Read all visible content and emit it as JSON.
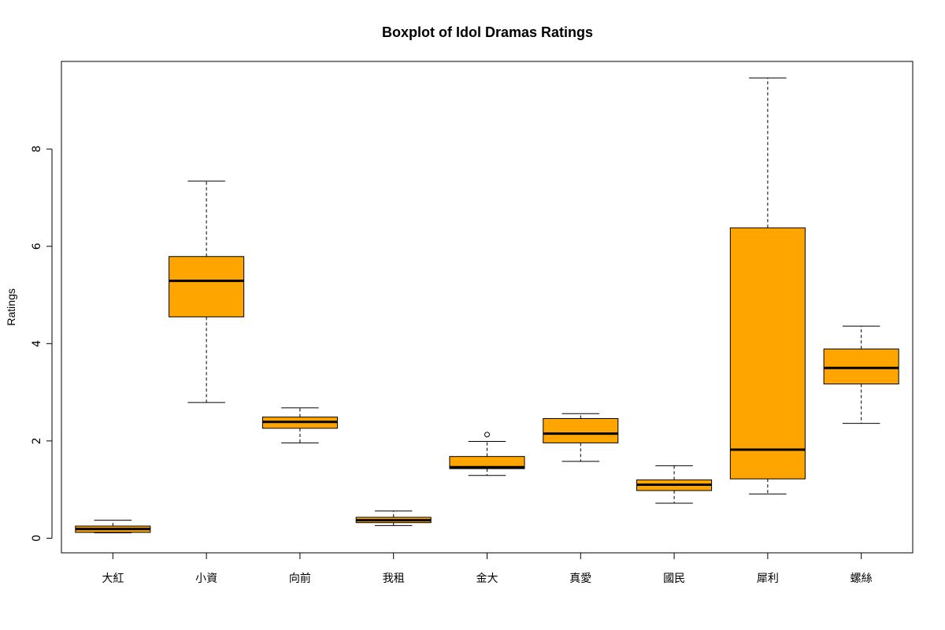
{
  "chart_data": {
    "type": "boxplot",
    "title": "Boxplot of Idol Dramas Ratings",
    "xlabel": "",
    "ylabel": "Ratings",
    "ylim": [
      -0.3,
      9.8
    ],
    "yticks": [
      0,
      2,
      4,
      6,
      8
    ],
    "grid": false,
    "colors": {
      "box_fill": "#FFA500",
      "stroke": "#000000"
    },
    "categories": [
      "大紅",
      "小資",
      "向前",
      "我租",
      "金大",
      "真愛",
      "國民",
      "犀利",
      "螺絲"
    ],
    "boxes": [
      {
        "category": "大紅",
        "min": 0.11,
        "q1": 0.12,
        "median": 0.19,
        "q3": 0.25,
        "max": 0.37,
        "outliers": []
      },
      {
        "category": "小資",
        "min": 2.79,
        "q1": 4.55,
        "median": 5.29,
        "q3": 5.79,
        "max": 7.34,
        "outliers": []
      },
      {
        "category": "向前",
        "min": 1.96,
        "q1": 2.26,
        "median": 2.39,
        "q3": 2.49,
        "max": 2.68,
        "outliers": []
      },
      {
        "category": "我租",
        "min": 0.26,
        "q1": 0.32,
        "median": 0.37,
        "q3": 0.43,
        "max": 0.56,
        "outliers": []
      },
      {
        "category": "金大",
        "min": 1.29,
        "q1": 1.43,
        "median": 1.46,
        "q3": 1.68,
        "max": 1.99,
        "outliers": [
          2.13
        ]
      },
      {
        "category": "真愛",
        "min": 1.58,
        "q1": 1.96,
        "median": 2.15,
        "q3": 2.46,
        "max": 2.56,
        "outliers": []
      },
      {
        "category": "國民",
        "min": 0.72,
        "q1": 0.98,
        "median": 1.1,
        "q3": 1.2,
        "max": 1.49,
        "outliers": []
      },
      {
        "category": "犀利",
        "min": 0.91,
        "q1": 1.22,
        "median": 1.82,
        "q3": 6.38,
        "max": 9.46,
        "outliers": []
      },
      {
        "category": "螺絲",
        "min": 2.36,
        "q1": 3.17,
        "median": 3.5,
        "q3": 3.89,
        "max": 4.36,
        "outliers": []
      }
    ]
  }
}
